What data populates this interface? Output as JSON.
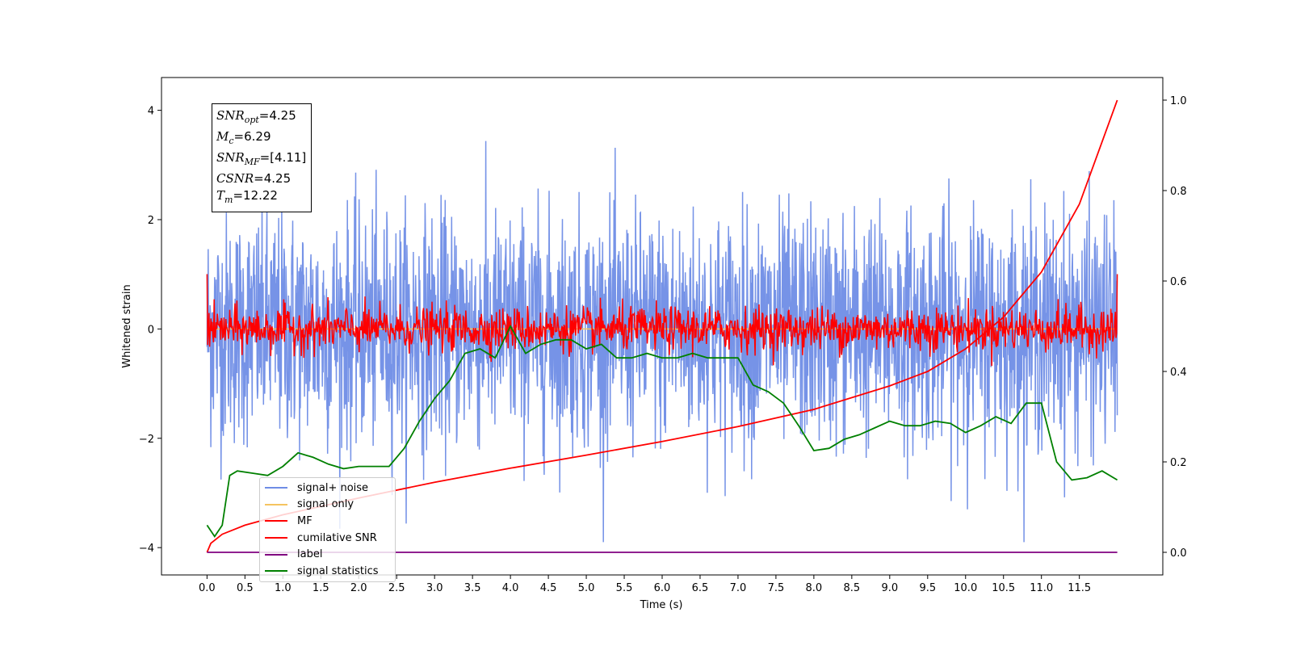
{
  "chart_data": {
    "type": "line",
    "title": "",
    "xlabel": "Time (s)",
    "ylabel": "Whitened strain",
    "y2label": "",
    "xlim": [
      -0.6,
      12.6
    ],
    "ylim": [
      -4.5,
      4.6
    ],
    "y2lim": [
      -0.05,
      1.05
    ],
    "xticks": [
      "0.0",
      "0.5",
      "1.0",
      "1.5",
      "2.0",
      "2.5",
      "3.0",
      "3.5",
      "4.0",
      "4.5",
      "5.0",
      "5.5",
      "6.0",
      "6.5",
      "7.0",
      "7.5",
      "8.0",
      "8.5",
      "9.0",
      "9.5",
      "10.0",
      "10.5",
      "11.0",
      "11.5"
    ],
    "yticks": [
      "4",
      "2",
      "0",
      "−2",
      "−4"
    ],
    "y2ticks": [
      "1.0",
      "0.8",
      "0.6",
      "0.4",
      "0.2",
      "0.0"
    ],
    "legend_position": "lower-left",
    "series": [
      {
        "name": "signal+ noise",
        "axis": "left",
        "color": "#6f8de6",
        "description_values": "noise centered at 0, std ~1, peaks up to ~4.2 near t=3.9 and down to ~-3.9 near t=2.5, spanning t 0 to 12"
      },
      {
        "name": "signal only",
        "axis": "left",
        "color": "#f5c460",
        "x": [
          0,
          12
        ],
        "y": [
          0,
          0
        ]
      },
      {
        "name": "MF",
        "axis": "left",
        "color": "#ff0000",
        "description_values": "noisy trace centered at 0, amplitude ~0.4, spike to 1.0 at t=0 and t=12"
      },
      {
        "name": "cumilative SNR",
        "axis": "right",
        "color": "#ff0000",
        "x": [
          0,
          0.05,
          0.2,
          0.5,
          1,
          2,
          3,
          4,
          5,
          6,
          7,
          8,
          9,
          9.5,
          10,
          10.5,
          11,
          11.5,
          12
        ],
        "y": [
          0,
          0.02,
          0.04,
          0.06,
          0.083,
          0.12,
          0.155,
          0.186,
          0.215,
          0.245,
          0.278,
          0.316,
          0.368,
          0.4,
          0.45,
          0.52,
          0.62,
          0.77,
          1.0
        ]
      },
      {
        "name": "label",
        "axis": "right",
        "color": "#800080",
        "x": [
          0,
          12
        ],
        "y": [
          0,
          0
        ]
      },
      {
        "name": "signal statistics",
        "axis": "right",
        "color": "#008000",
        "x": [
          0,
          0.1,
          0.2,
          0.3,
          0.4,
          0.6,
          0.8,
          1.0,
          1.2,
          1.4,
          1.6,
          1.8,
          2.0,
          2.2,
          2.4,
          2.6,
          2.8,
          3.0,
          3.2,
          3.4,
          3.6,
          3.8,
          4.0,
          4.2,
          4.4,
          4.6,
          4.8,
          5.0,
          5.2,
          5.4,
          5.6,
          5.8,
          6.0,
          6.2,
          6.4,
          6.6,
          6.8,
          7.0,
          7.2,
          7.4,
          7.6,
          7.8,
          8.0,
          8.2,
          8.4,
          8.6,
          8.8,
          9.0,
          9.2,
          9.4,
          9.6,
          9.8,
          10.0,
          10.2,
          10.4,
          10.6,
          10.8,
          11.0,
          11.2,
          11.4,
          11.6,
          11.8,
          12.0
        ],
        "y": [
          0.06,
          0.035,
          0.06,
          0.17,
          0.18,
          0.175,
          0.17,
          0.19,
          0.22,
          0.21,
          0.195,
          0.185,
          0.19,
          0.19,
          0.19,
          0.23,
          0.29,
          0.34,
          0.38,
          0.44,
          0.45,
          0.43,
          0.5,
          0.44,
          0.46,
          0.47,
          0.47,
          0.45,
          0.46,
          0.43,
          0.43,
          0.44,
          0.43,
          0.43,
          0.44,
          0.43,
          0.43,
          0.43,
          0.37,
          0.355,
          0.33,
          0.28,
          0.225,
          0.23,
          0.25,
          0.26,
          0.275,
          0.29,
          0.28,
          0.28,
          0.29,
          0.285,
          0.265,
          0.28,
          0.3,
          0.285,
          0.33,
          0.33,
          0.2,
          0.16,
          0.165,
          0.18,
          0.16
        ]
      }
    ]
  },
  "stats_box": {
    "snr_opt": "SNR",
    "snr_opt_sub": "opt",
    "snr_opt_value": "=4.25",
    "mc": "M",
    "mc_sub": "c",
    "mc_value": "=6.29",
    "snr_mf": "SNR",
    "snr_mf_sub": "MF",
    "snr_mf_value": "=[4.11]",
    "csnr": "CSNR",
    "csnr_value": "=4.25",
    "tm": "T",
    "tm_sub": "m",
    "tm_value": "=12.22"
  },
  "legend": [
    {
      "label": "signal+ noise",
      "color": "#6f8de6"
    },
    {
      "label": "signal only",
      "color": "#f5c460"
    },
    {
      "label": "MF",
      "color": "#ff0000"
    },
    {
      "label": "cumilative SNR",
      "color": "#ff0000"
    },
    {
      "label": "label",
      "color": "#800080"
    },
    {
      "label": "signal statistics",
      "color": "#008000"
    }
  ]
}
